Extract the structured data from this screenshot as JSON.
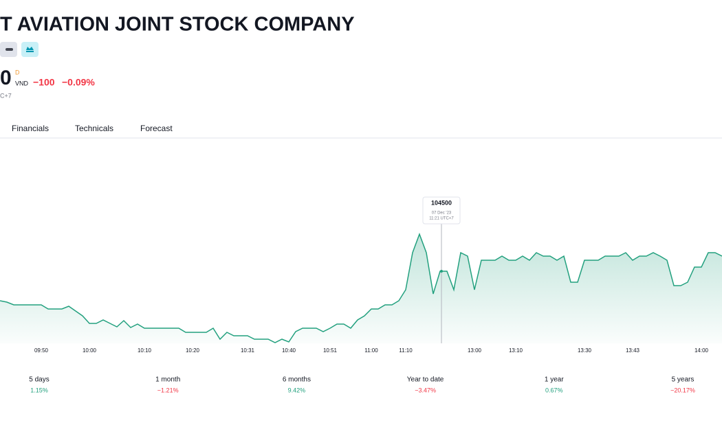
{
  "header": {
    "title": "T AVIATION JOINT STOCK COMPANY",
    "price": "0",
    "price_flag": "D",
    "currency": "VND",
    "change": "−100",
    "change_percent": "−0.09%",
    "timezone": "C+7"
  },
  "tabs": [
    "Financials",
    "Technicals",
    "Forecast"
  ],
  "chart_data": {
    "type": "line",
    "color": "#22a07e",
    "categories": [
      null,
      null,
      null,
      null,
      null,
      null,
      "09:50",
      null,
      null,
      null,
      null,
      null,
      null,
      "10:00",
      null,
      null,
      null,
      null,
      null,
      null,
      null,
      "10:10",
      null,
      null,
      null,
      null,
      null,
      null,
      "10:20",
      null,
      null,
      null,
      null,
      null,
      null,
      null,
      "10:31",
      null,
      null,
      null,
      null,
      null,
      "10:40",
      null,
      null,
      null,
      null,
      null,
      "10:51",
      null,
      null,
      null,
      null,
      null,
      "11:00",
      null,
      null,
      null,
      null,
      "11:10",
      null,
      null,
      null,
      null,
      null,
      null,
      null,
      null,
      null,
      "13:00",
      null,
      null,
      null,
      null,
      null,
      "13:10",
      null,
      null,
      null,
      null,
      null,
      null,
      null,
      null,
      null,
      "13:30",
      null,
      null,
      null,
      null,
      null,
      null,
      "13:43",
      null,
      null,
      null,
      null,
      null,
      null,
      null,
      null,
      null,
      "14:00",
      null,
      null,
      null
    ],
    "values": [
      103640,
      103600,
      103520,
      103520,
      103520,
      103520,
      103520,
      103400,
      103400,
      103400,
      103480,
      103340,
      103200,
      102980,
      102980,
      103080,
      102980,
      102880,
      103060,
      102860,
      102960,
      102840,
      102840,
      102840,
      102840,
      102840,
      102840,
      102720,
      102720,
      102720,
      102720,
      102840,
      102520,
      102720,
      102620,
      102620,
      102620,
      102520,
      102520,
      102520,
      102420,
      102520,
      102440,
      102740,
      102840,
      102840,
      102840,
      102740,
      102840,
      102960,
      102960,
      102840,
      103080,
      103200,
      103400,
      103400,
      103520,
      103520,
      103640,
      103960,
      105040,
      105580,
      105040,
      103840,
      104500,
      104500,
      103960,
      105040,
      104940,
      103960,
      104820,
      104820,
      104820,
      104940,
      104820,
      104820,
      104940,
      104820,
      105040,
      104940,
      104940,
      104820,
      104940,
      104180,
      104180,
      104820,
      104820,
      104820,
      104940,
      104940,
      104940,
      105040,
      104820,
      104940,
      104940,
      105040,
      104940,
      104820,
      104080,
      104080,
      104180,
      104620,
      104620,
      105040,
      105040,
      104940
    ],
    "tooltip": {
      "value": 104500,
      "date": "07 Dec '23",
      "time": "11:21 UTC+7"
    }
  },
  "periods": [
    {
      "label": "5 days",
      "change": "1.15%"
    },
    {
      "label": "1 month",
      "change": "−1.21%"
    },
    {
      "label": "6 months",
      "change": "9.42%"
    },
    {
      "label": "Year to date",
      "change": "−3.47%"
    },
    {
      "label": "1 year",
      "change": "0.67%"
    },
    {
      "label": "5 years",
      "change": "−20.17%"
    }
  ]
}
